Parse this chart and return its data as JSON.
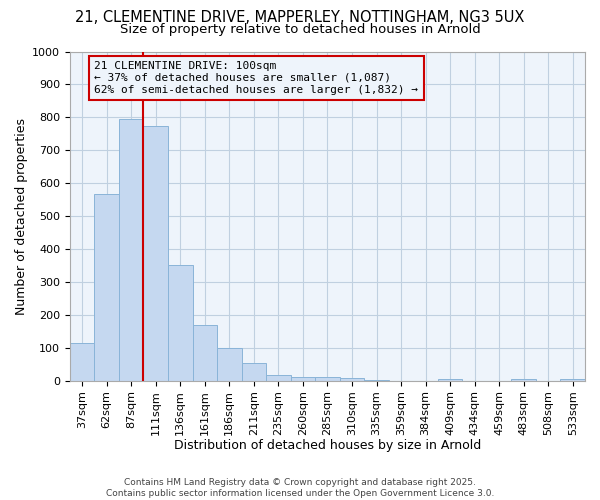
{
  "title_line1": "21, CLEMENTINE DRIVE, MAPPERLEY, NOTTINGHAM, NG3 5UX",
  "title_line2": "Size of property relative to detached houses in Arnold",
  "xlabel": "Distribution of detached houses by size in Arnold",
  "ylabel": "Number of detached properties",
  "categories": [
    "37sqm",
    "62sqm",
    "87sqm",
    "111sqm",
    "136sqm",
    "161sqm",
    "186sqm",
    "211sqm",
    "235sqm",
    "260sqm",
    "285sqm",
    "310sqm",
    "335sqm",
    "359sqm",
    "384sqm",
    "409sqm",
    "434sqm",
    "459sqm",
    "483sqm",
    "508sqm",
    "533sqm"
  ],
  "values": [
    113,
    568,
    795,
    775,
    350,
    168,
    98,
    55,
    16,
    12,
    10,
    7,
    3,
    0,
    0,
    4,
    0,
    0,
    4,
    0,
    4
  ],
  "bar_color": "#c5d8f0",
  "bar_edge_color": "#8ab4d8",
  "grid_color": "#c0d0e0",
  "bg_color": "#ffffff",
  "plot_bg_color": "#eef4fb",
  "vline_x_idx": 3,
  "vline_color": "#cc0000",
  "annotation_text": "21 CLEMENTINE DRIVE: 100sqm\n← 37% of detached houses are smaller (1,087)\n62% of semi-detached houses are larger (1,832) →",
  "annotation_box_color": "#cc0000",
  "ylim": [
    0,
    1000
  ],
  "yticks": [
    0,
    100,
    200,
    300,
    400,
    500,
    600,
    700,
    800,
    900,
    1000
  ],
  "footer_line1": "Contains HM Land Registry data © Crown copyright and database right 2025.",
  "footer_line2": "Contains public sector information licensed under the Open Government Licence 3.0.",
  "title_fontsize": 10.5,
  "subtitle_fontsize": 9.5,
  "annotation_fontsize": 8,
  "axis_label_fontsize": 9,
  "tick_fontsize": 8,
  "footer_fontsize": 6.5
}
